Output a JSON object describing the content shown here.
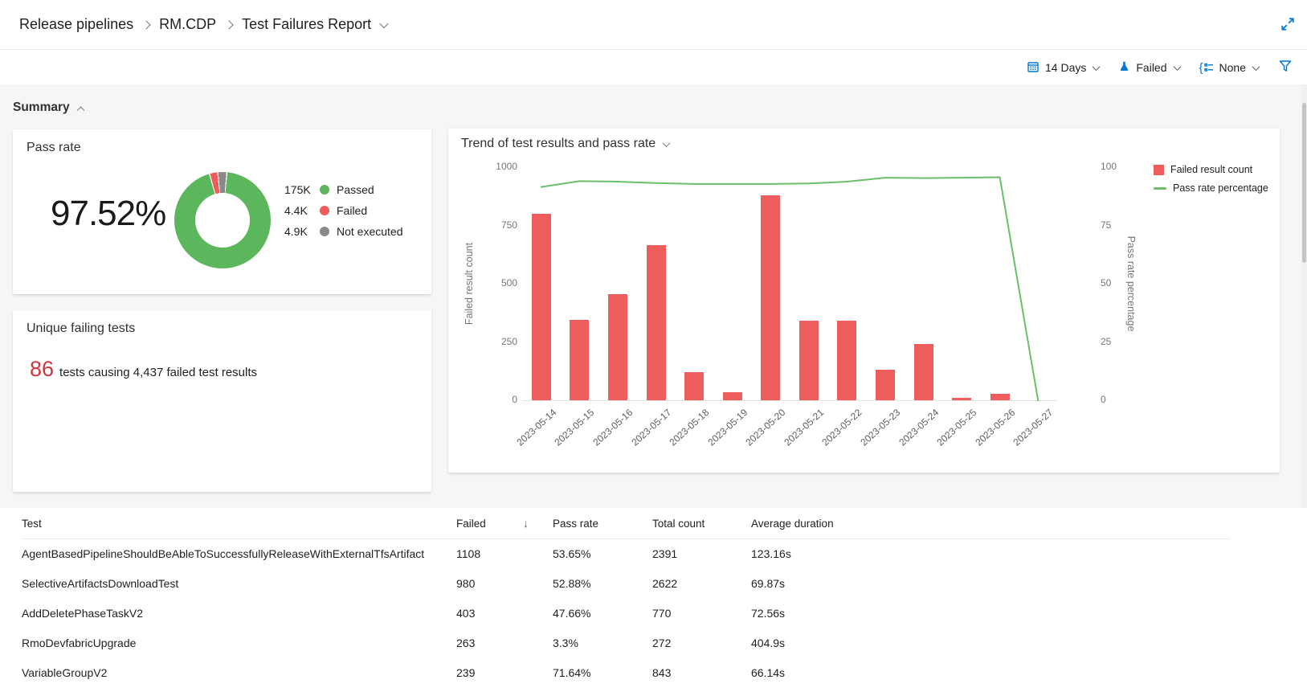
{
  "breadcrumb": {
    "items": [
      "Release pipelines",
      "RM.CDP",
      "Test Failures Report"
    ]
  },
  "toolbar": {
    "duration": {
      "label": "14 Days",
      "icon": "calendar-icon"
    },
    "outcome": {
      "label": "Failed",
      "icon": "beaker-icon"
    },
    "group_by": {
      "label": "None",
      "icon": "group-by-icon"
    },
    "filter_icon": "funnel-icon",
    "accent_color": "#0078d4"
  },
  "summary": {
    "title": "Summary"
  },
  "pass_rate_card": {
    "title": "Pass rate",
    "value": "97.52%",
    "legend": [
      {
        "value": "175K",
        "label": "Passed",
        "color": "#5cb75c"
      },
      {
        "value": "4.4K",
        "label": "Failed",
        "color": "#ee5c5c"
      },
      {
        "value": "4.9K",
        "label": "Not executed",
        "color": "#8a8a8a"
      }
    ]
  },
  "unique_failing_card": {
    "title": "Unique failing tests",
    "count": "86",
    "count_color": "#d13438",
    "text": "tests causing 4,437 failed test results"
  },
  "chart_data": {
    "type": "bar",
    "title": "Trend of test results and pass rate",
    "categories": [
      "2023-05-14",
      "2023-05-15",
      "2023-05-16",
      "2023-05-17",
      "2023-05-18",
      "2023-05-19",
      "2023-05-20",
      "2023-05-21",
      "2023-05-22",
      "2023-05-23",
      "2023-05-24",
      "2023-05-25",
      "2023-05-26",
      "2023-05-27"
    ],
    "series": [
      {
        "name": "Failed result count",
        "type": "bar",
        "color": "#ee5c5c",
        "values": [
          800,
          345,
          455,
          665,
          120,
          35,
          880,
          340,
          340,
          130,
          240,
          12,
          28,
          0
        ]
      },
      {
        "name": "Pass rate percentage",
        "type": "line",
        "color": "#6abf69",
        "values": [
          91.5,
          94,
          93.8,
          93.2,
          92.8,
          92.8,
          92.8,
          93,
          93.8,
          95.5,
          95.3,
          95.5,
          95.7,
          0
        ]
      }
    ],
    "left_axis": {
      "label": "Failed result count",
      "ticks": [
        0,
        250,
        500,
        750,
        1000
      ],
      "max": 1000
    },
    "right_axis": {
      "label": "Pass rate percentage",
      "ticks": [
        0,
        25,
        50,
        75,
        100
      ],
      "max": 100
    },
    "legend_position": "right",
    "grid": false
  },
  "table": {
    "columns": [
      "Test",
      "Failed",
      "Pass rate",
      "Total count",
      "Average duration"
    ],
    "sort": {
      "column": "Failed",
      "direction": "descending",
      "indicator": "↓"
    },
    "rows": [
      {
        "test": "AgentBasedPipelineShouldBeAbleToSuccessfullyReleaseWithExternalTfsArtifact",
        "failed": "1108",
        "pass_rate": "53.65%",
        "total_count": "2391",
        "average_duration": "123.16s"
      },
      {
        "test": "SelectiveArtifactsDownloadTest",
        "failed": "980",
        "pass_rate": "52.88%",
        "total_count": "2622",
        "average_duration": "69.87s"
      },
      {
        "test": "AddDeletePhaseTaskV2",
        "failed": "403",
        "pass_rate": "47.66%",
        "total_count": "770",
        "average_duration": "72.56s"
      },
      {
        "test": "RmoDevfabricUpgrade",
        "failed": "263",
        "pass_rate": "3.3%",
        "total_count": "272",
        "average_duration": "404.9s"
      },
      {
        "test": "VariableGroupV2",
        "failed": "239",
        "pass_rate": "71.64%",
        "total_count": "843",
        "average_duration": "66.14s"
      }
    ]
  }
}
